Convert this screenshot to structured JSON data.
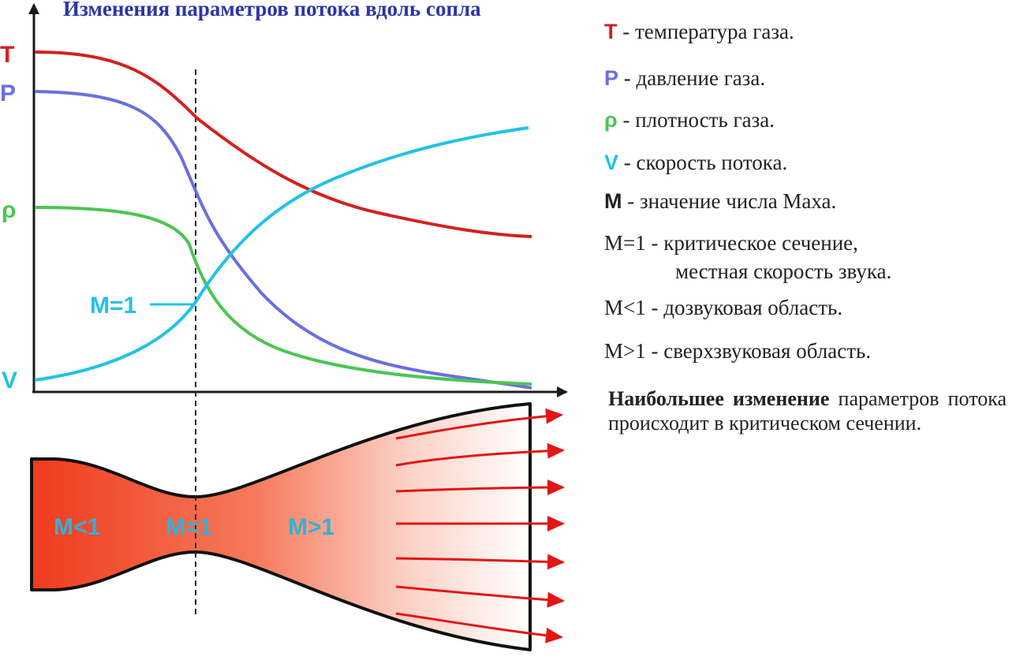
{
  "title": "Изменения параметров потока вдоль сопла",
  "colors": {
    "title": "#2b35a8",
    "temperature": "#d42020",
    "pressure": "#6a6fde",
    "density": "#4cc552",
    "velocity": "#22c2e6",
    "axis": "#1a1a1a",
    "nozzle_hot": "#ef3b1d",
    "arrow": "#e31515"
  },
  "axis_labels": {
    "T": "T",
    "P": "P",
    "rho": "ρ",
    "V": "V"
  },
  "annotations": {
    "critical": "M=1"
  },
  "nozzle": {
    "regions": [
      "M<1",
      "M=1",
      "M>1"
    ]
  },
  "legend": [
    {
      "symbol": "T",
      "text": " - температура газа.",
      "color": "#d42020"
    },
    {
      "symbol": "P",
      "text": " - давление газа.",
      "color": "#6a6fde"
    },
    {
      "symbol": "ρ",
      "text": " - плотность газа.",
      "color": "#4cc552"
    },
    {
      "symbol": "V",
      "text": " - скорость потока.",
      "color": "#22c2e6"
    },
    {
      "symbol": "M",
      "text": " - значение числа Маха.",
      "color": "#222222"
    },
    {
      "symbol": "M=1",
      "text": " - критическое сечение,",
      "text2": "местная скорость звука."
    },
    {
      "symbol": "M<1",
      "text": " - дозвуковая область."
    },
    {
      "symbol": "M>1",
      "text": " - сверхзвуковая область."
    }
  ],
  "note": {
    "bold": "Наибольшее изменение",
    "rest": " параметров потока происходит в критическом сечении."
  }
}
